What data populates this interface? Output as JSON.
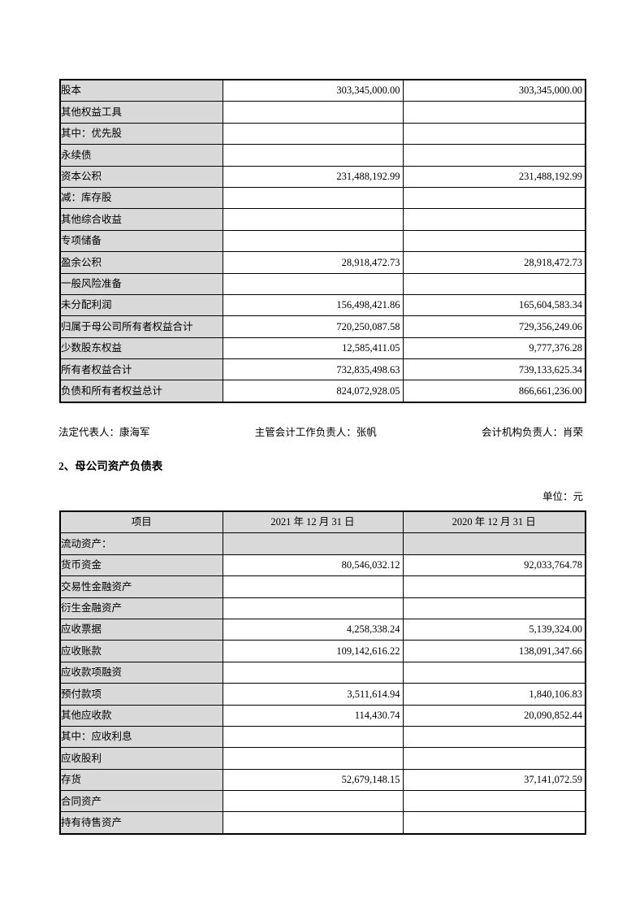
{
  "page": {
    "background_color": "#ffffff",
    "table_shade_color": "#d9d9d9",
    "border_color": "#000000"
  },
  "equity_table": {
    "rows": [
      {
        "label": "股本",
        "indent": 1,
        "section": false,
        "v1": "303,345,000.00",
        "v2": "303,345,000.00"
      },
      {
        "label": "其他权益工具",
        "indent": 1,
        "section": false,
        "v1": "",
        "v2": ""
      },
      {
        "label": "其中：优先股",
        "indent": 2,
        "section": false,
        "v1": "",
        "v2": ""
      },
      {
        "label": "永续债",
        "indent": 3,
        "section": false,
        "v1": "",
        "v2": ""
      },
      {
        "label": "资本公积",
        "indent": 1,
        "section": false,
        "v1": "231,488,192.99",
        "v2": "231,488,192.99"
      },
      {
        "label": "减：库存股",
        "indent": 1,
        "section": false,
        "v1": "",
        "v2": ""
      },
      {
        "label": "其他综合收益",
        "indent": 1,
        "section": false,
        "v1": "",
        "v2": ""
      },
      {
        "label": "专项储备",
        "indent": 1,
        "section": false,
        "v1": "",
        "v2": ""
      },
      {
        "label": "盈余公积",
        "indent": 1,
        "section": false,
        "v1": "28,918,472.73",
        "v2": "28,918,472.73"
      },
      {
        "label": "一般风险准备",
        "indent": 1,
        "section": false,
        "v1": "",
        "v2": ""
      },
      {
        "label": "未分配利润",
        "indent": 1,
        "section": false,
        "v1": "156,498,421.86",
        "v2": "165,604,583.34"
      },
      {
        "label": "归属于母公司所有者权益合计",
        "indent": 0,
        "section": false,
        "v1": "720,250,087.58",
        "v2": "729,356,249.06"
      },
      {
        "label": "少数股东权益",
        "indent": 1,
        "section": false,
        "v1": "12,585,411.05",
        "v2": "9,777,376.28"
      },
      {
        "label": "所有者权益合计",
        "indent": 0,
        "section": false,
        "v1": "732,835,498.63",
        "v2": "739,133,625.34"
      },
      {
        "label": "负债和所有者权益总计",
        "indent": 0,
        "section": false,
        "v1": "824,072,928.05",
        "v2": "866,661,236.00"
      }
    ]
  },
  "signature": {
    "legal_representative": "法定代表人：康海军",
    "chief_accounting_officer": "主管会计工作负责人：张帆",
    "accounting_department_head": "会计机构负责人：肖荣"
  },
  "section": {
    "heading": "2、母公司资产负债表",
    "unit": "单位：元"
  },
  "parent_balance_sheet": {
    "headers": [
      "项目",
      "2021 年 12 月 31 日",
      "2020 年 12 月 31 日"
    ],
    "rows": [
      {
        "label": "流动资产：",
        "indent": 0,
        "section": true,
        "v1": "",
        "v2": ""
      },
      {
        "label": "货币资金",
        "indent": 1,
        "section": false,
        "v1": "80,546,032.12",
        "v2": "92,033,764.78"
      },
      {
        "label": "交易性金融资产",
        "indent": 1,
        "section": false,
        "v1": "",
        "v2": ""
      },
      {
        "label": "衍生金融资产",
        "indent": 1,
        "section": false,
        "v1": "",
        "v2": ""
      },
      {
        "label": "应收票据",
        "indent": 1,
        "section": false,
        "v1": "4,258,338.24",
        "v2": "5,139,324.00"
      },
      {
        "label": "应收账款",
        "indent": 1,
        "section": false,
        "v1": "109,142,616.22",
        "v2": "138,091,347.66"
      },
      {
        "label": "应收款项融资",
        "indent": 1,
        "section": false,
        "v1": "",
        "v2": ""
      },
      {
        "label": "预付款项",
        "indent": 1,
        "section": false,
        "v1": "3,511,614.94",
        "v2": "1,840,106.83"
      },
      {
        "label": "其他应收款",
        "indent": 1,
        "section": false,
        "v1": "114,430.74",
        "v2": "20,090,852.44"
      },
      {
        "label": "其中：应收利息",
        "indent": 2,
        "section": false,
        "v1": "",
        "v2": ""
      },
      {
        "label": "应收股利",
        "indent": 3,
        "section": false,
        "v1": "",
        "v2": ""
      },
      {
        "label": "存货",
        "indent": 1,
        "section": false,
        "v1": "52,679,148.15",
        "v2": "37,141,072.59"
      },
      {
        "label": "合同资产",
        "indent": 1,
        "section": false,
        "v1": "",
        "v2": ""
      },
      {
        "label": "持有待售资产",
        "indent": 1,
        "section": false,
        "v1": "",
        "v2": ""
      }
    ]
  }
}
